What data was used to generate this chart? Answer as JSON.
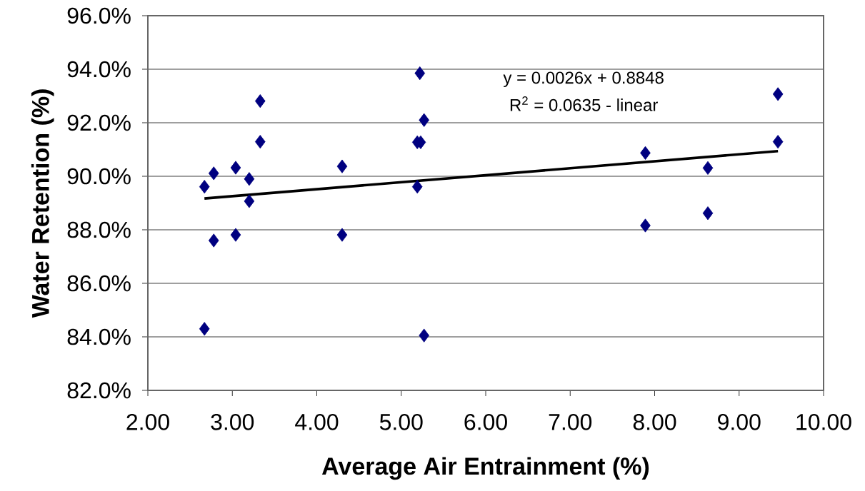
{
  "chart_data": {
    "type": "scatter",
    "xlabel": "Average Air Entrainment (%)",
    "ylabel": "Water Retention (%)",
    "annotations": [
      "y = 0.0026x + 0.8848",
      "R$^{2}$ = 0.0635 - linear"
    ],
    "series": [
      {
        "color": "#000080",
        "marker": "diamond",
        "x": [
          2.67,
          2.67,
          2.78,
          2.78,
          3.04,
          3.04,
          3.2,
          3.2,
          3.33,
          3.33,
          4.3,
          4.3,
          5.22,
          5.27,
          5.19,
          5.23,
          5.19,
          5.27,
          7.89,
          7.89,
          8.63,
          8.63,
          9.46,
          9.46
        ],
        "values": [
          89.61,
          84.3,
          90.11,
          87.6,
          90.32,
          87.81,
          89.9,
          89.07,
          92.81,
          91.29,
          90.37,
          87.81,
          93.85,
          92.1,
          91.27,
          91.27,
          89.61,
          84.05,
          90.87,
          88.16,
          90.31,
          88.62,
          93.07,
          91.29
        ]
      },
      {
        "type": "line",
        "color": "#000000",
        "marker": "none",
        "x": [
          2.67,
          9.46
        ],
        "values": [
          89.17,
          90.94
        ]
      }
    ],
    "xlim": [
      2,
      10
    ],
    "ylim": [
      82,
      96
    ],
    "xticks": [
      {
        "value": 2,
        "label": "2.00"
      },
      {
        "value": 3,
        "label": "3.00"
      },
      {
        "value": 4,
        "label": "4.00"
      },
      {
        "value": 5,
        "label": "5.00"
      },
      {
        "value": 6,
        "label": "6.00"
      },
      {
        "value": 7,
        "label": "7.00"
      },
      {
        "value": 8,
        "label": "8.00"
      },
      {
        "value": 9,
        "label": "9.00"
      },
      {
        "value": 10,
        "label": "10.00"
      }
    ],
    "yticks": [
      {
        "value": 82,
        "label": "82.0%"
      },
      {
        "value": 84,
        "label": "84.0%"
      },
      {
        "value": 86,
        "label": "86.0%"
      },
      {
        "value": 88,
        "label": "88.0%"
      },
      {
        "value": 90,
        "label": "90.0%"
      },
      {
        "value": 92,
        "label": "92.0%"
      },
      {
        "value": 94,
        "label": "94.0%"
      },
      {
        "value": 96,
        "label": "96.0%"
      }
    ],
    "grid": "y"
  }
}
